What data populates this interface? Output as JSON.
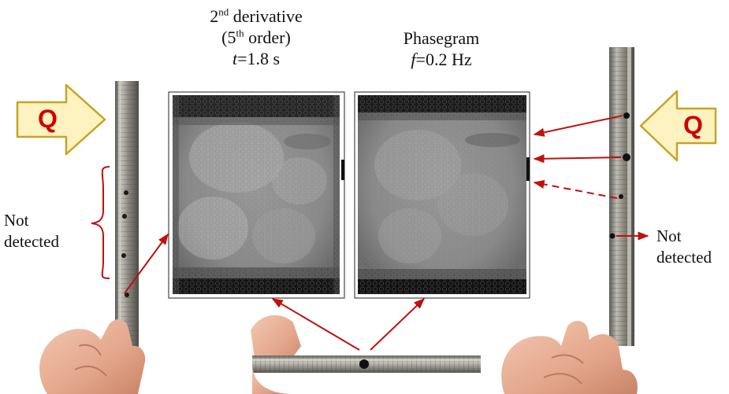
{
  "left_caption": {
    "line1_base": "2",
    "line1_sup": "nd",
    "line1_rest": " derivative",
    "line2_open": "(5",
    "line2_sup": "th",
    "line2_rest": " order)",
    "line3_var": "t",
    "line3_rest": "=1.8 s"
  },
  "right_caption": {
    "line1": "Phasegram",
    "line2_var": "f",
    "line2_rest": "=0.2 Hz"
  },
  "heat_symbol": "Q",
  "not_detected_left": {
    "line1": "Not",
    "line2": "detected"
  },
  "not_detected_right": {
    "line1": "Not",
    "line2": "detected"
  },
  "colors": {
    "arrow_red": "#c0100f",
    "q_fill": "#fdf3c0",
    "q_text": "#d10000",
    "q_stroke": "#c9a227"
  }
}
